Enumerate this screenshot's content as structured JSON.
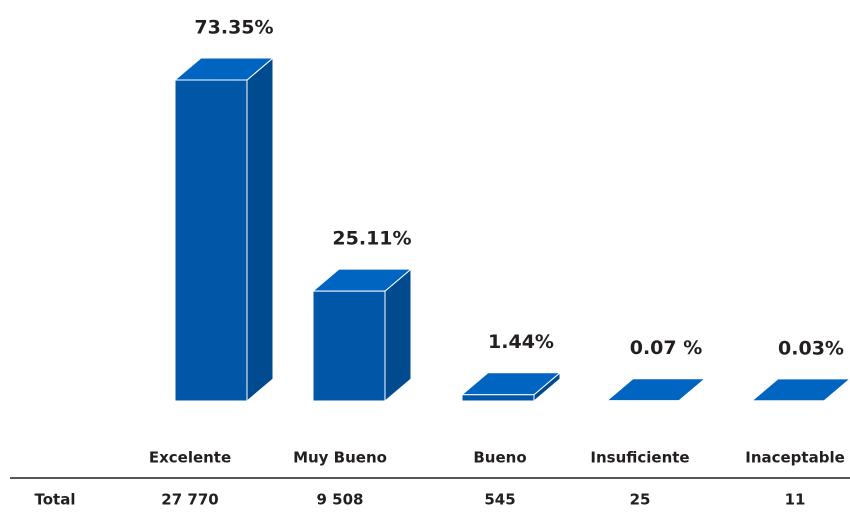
{
  "chart_data": {
    "type": "bar3d",
    "categories": [
      "Excelente",
      "Muy Bueno",
      "Bueno",
      "Insuficiente",
      "Inaceptable"
    ],
    "values": [
      73.35,
      25.11,
      1.44,
      0.07,
      0.03
    ],
    "value_labels": [
      "73.35%",
      "25.11%",
      "1.44%",
      "0.07 %",
      "0.03%"
    ],
    "color": "#0057a8",
    "table": {
      "row_label": "Total",
      "cells": [
        "27 770",
        "9 508",
        "545",
        "25",
        "11"
      ]
    }
  }
}
